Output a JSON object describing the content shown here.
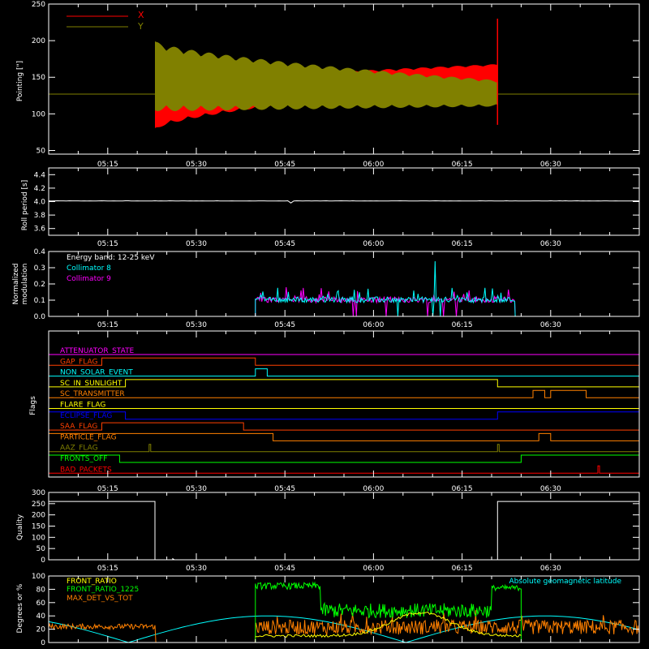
{
  "colors": {
    "background": "#000000",
    "axes": "#ffffff",
    "x_series": "#ff0000",
    "y_series": "#808000",
    "cyan": "#00ffff",
    "magenta": "#ff00ff",
    "green": "#00ff00",
    "orange": "#ff8000",
    "yellow": "#ffff00",
    "blue": "#0000ff"
  },
  "chart_data": [
    {
      "type": "area",
      "ylabel": "Pointing [\"]",
      "ylim": [
        45,
        250
      ],
      "yticks": [
        50,
        100,
        150,
        200,
        250
      ],
      "xticks": [
        "05:15",
        "05:30",
        "05:45",
        "06:00",
        "06:15",
        "06:30"
      ],
      "xlim_minutes": [
        305,
        405
      ],
      "series": [
        {
          "name": "X",
          "color": "#ff0000",
          "start": "05:23",
          "end": "06:21",
          "mean_start": 105,
          "mean_end": 155,
          "half_amp_start": 28,
          "half_amp_end": 13,
          "baseline": 127,
          "spike_max": 230
        },
        {
          "name": "Y",
          "color": "#808000",
          "start": "05:23",
          "end": "06:21",
          "mean_start": 152,
          "mean_end": 128,
          "half_amp_start": 48,
          "half_amp_end": 18,
          "baseline": 127
        }
      ],
      "legend": "top-left"
    },
    {
      "type": "line",
      "ylabel": "Roll period [s]",
      "ylim": [
        3.5,
        4.5
      ],
      "yticks": [
        3.6,
        3.8,
        4.0,
        4.2,
        4.4
      ],
      "xticks": [
        "05:15",
        "05:30",
        "05:45",
        "06:00",
        "06:15",
        "06:30"
      ],
      "value": 4.01
    },
    {
      "type": "line",
      "ylabel": "Normalized modulation",
      "ylim": [
        0,
        0.4
      ],
      "yticks": [
        0.0,
        0.1,
        0.2,
        0.3,
        0.4
      ],
      "xticks": [
        "05:15",
        "05:30",
        "05:45",
        "06:00",
        "06:15",
        "06:30"
      ],
      "annotation": "Energy band: 12-25 keV",
      "series": [
        {
          "name": "Collimator 8",
          "color": "#00ffff",
          "start": "05:40",
          "end": "06:24",
          "base": 0.09,
          "spike": 0.34
        },
        {
          "name": "Collimator 9",
          "color": "#ff00ff",
          "start": "05:40",
          "end": "06:24",
          "base": 0.09
        }
      ],
      "legend": "top-left"
    },
    {
      "type": "line",
      "ylabel": "Flags",
      "xticks": [
        "05:15",
        "05:30",
        "05:45",
        "06:00",
        "06:15",
        "06:30"
      ],
      "flags": [
        {
          "name": "ATTENUATOR_STATE",
          "color": "#ff00ff",
          "on": []
        },
        {
          "name": "GAP_FLAG",
          "color": "#ff4000",
          "on": [
            [
              "05:14",
              "05:40"
            ]
          ]
        },
        {
          "name": "NON_SOLAR_EVENT",
          "color": "#00ffff",
          "on": [
            [
              "05:40",
              "05:42"
            ]
          ]
        },
        {
          "name": "SC_IN_SUNLIGHT",
          "color": "#ffff00",
          "on": [
            [
              "05:18",
              "06:21"
            ]
          ]
        },
        {
          "name": "SC_TRANSMITTER",
          "color": "#ff8000",
          "on": [
            [
              "06:27",
              "06:29"
            ],
            [
              "06:30",
              "06:36"
            ]
          ]
        },
        {
          "name": "FLARE_FLAG",
          "color": "#ffff00",
          "on": []
        },
        {
          "name": "ECLIPSE_FLAG",
          "color": "#0000ff",
          "on": [
            [
              "05:05",
              "05:18"
            ],
            [
              "06:21",
              "06:45"
            ]
          ]
        },
        {
          "name": "SAA_FLAG",
          "color": "#ff4000",
          "on": [
            [
              "05:14",
              "05:38"
            ]
          ]
        },
        {
          "name": "PARTICLE_FLAG",
          "color": "#ff8000",
          "on": [
            [
              "05:05",
              "05:43"
            ],
            [
              "06:28",
              "06:30"
            ]
          ]
        },
        {
          "name": "AAZ_FLAG",
          "color": "#808000",
          "on": [
            [
              "05:22",
              "05:22"
            ],
            [
              "06:21",
              "06:21"
            ]
          ]
        },
        {
          "name": "FRONTS_OFF",
          "color": "#00ff00",
          "on": [
            [
              "05:05",
              "05:17"
            ],
            [
              "06:25",
              "06:45"
            ]
          ]
        },
        {
          "name": "BAD_PACKETS",
          "color": "#ff0000",
          "on": [
            [
              "06:38",
              "06:38"
            ]
          ]
        }
      ]
    },
    {
      "type": "line",
      "ylabel": "Quality",
      "ylim": [
        0,
        300
      ],
      "yticks": [
        0,
        50,
        100,
        150,
        200,
        250,
        300
      ],
      "xticks": [
        "05:15",
        "05:30",
        "05:45",
        "06:00",
        "06:15",
        "06:30"
      ],
      "segments": [
        [
          305,
          260
        ],
        [
          323,
          260
        ],
        [
          323,
          0
        ],
        [
          326,
          0
        ],
        [
          326,
          5
        ],
        [
          326.3,
          0
        ],
        [
          381,
          0
        ],
        [
          381,
          260
        ],
        [
          405,
          260
        ]
      ]
    },
    {
      "type": "line",
      "ylabel": "Degrees or %",
      "ylim": [
        0,
        100
      ],
      "yticks": [
        0,
        20,
        40,
        60,
        80,
        100
      ],
      "xticks": [
        "05:15",
        "05:30",
        "05:45",
        "06:00",
        "06:15",
        "06:30"
      ],
      "series": [
        {
          "name": "FRONT_RATIO",
          "color": "#ffff00"
        },
        {
          "name": "FRONT_RATIO_1225",
          "color": "#00ff00"
        },
        {
          "name": "MAX_DET_VS_TOT",
          "color": "#ff8000"
        },
        {
          "name": "Absolute geomagnetic latitude",
          "color": "#00ffff"
        }
      ],
      "legend": "top-left"
    }
  ]
}
